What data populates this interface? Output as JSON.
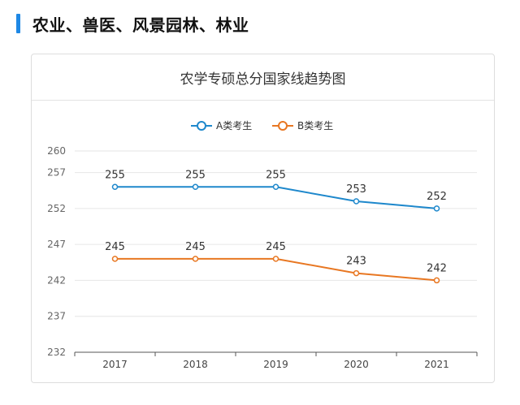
{
  "section": {
    "title": "农业、兽医、风景园林、林业",
    "accent_color": "#1e88e5"
  },
  "chart_data": {
    "type": "line",
    "title": "农学专硕总分国家线趋势图",
    "categories": [
      "2017",
      "2018",
      "2019",
      "2020",
      "2021"
    ],
    "series": [
      {
        "name": "A类考生",
        "values": [
          255,
          255,
          255,
          253,
          252
        ],
        "color": "#1e88cc"
      },
      {
        "name": "B类考生",
        "values": [
          245,
          245,
          245,
          243,
          242
        ],
        "color": "#e87722"
      }
    ],
    "yticks": [
      232,
      237,
      242,
      247,
      252,
      257,
      260
    ],
    "ylim": [
      232,
      260
    ],
    "legend_position": "top-center",
    "grid": true
  }
}
